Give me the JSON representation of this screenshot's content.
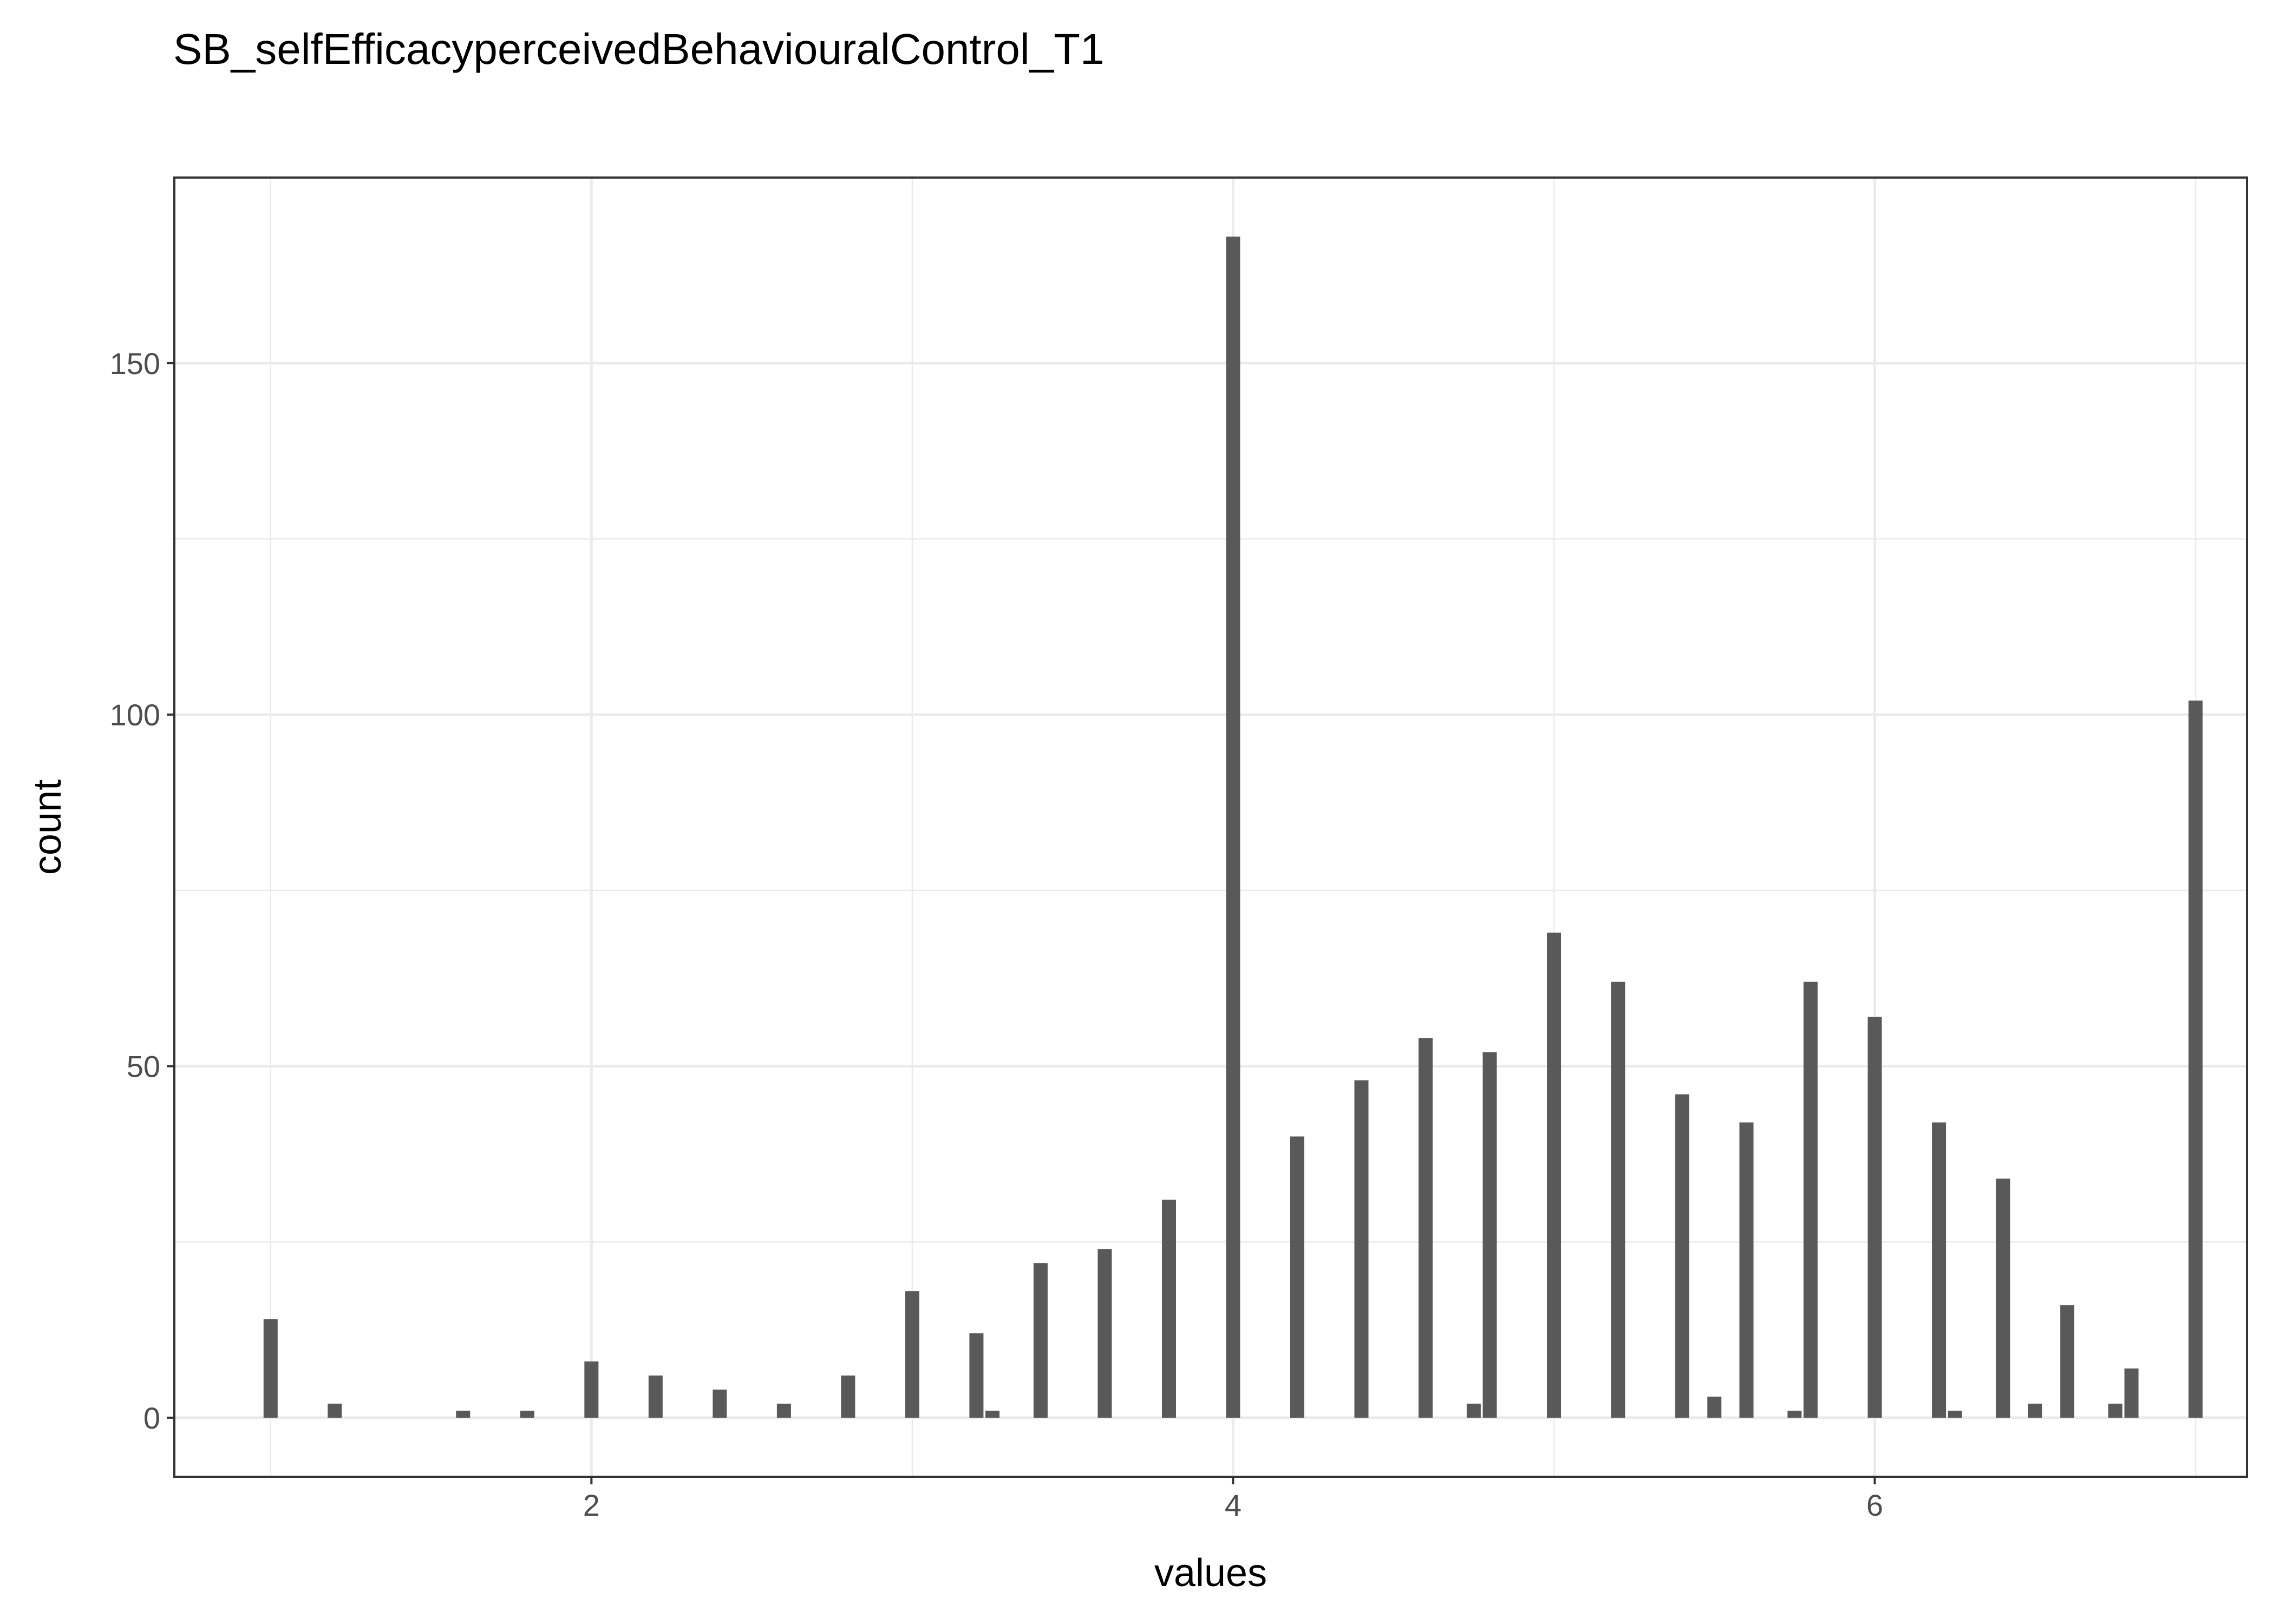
{
  "chart_data": {
    "type": "bar",
    "title": "SB_selfEfficacyperceivedBehaviouralControl_T1",
    "xlabel": "values",
    "ylabel": "count",
    "xlim": [
      0.7,
      7.16
    ],
    "ylim": [
      -8.4,
      176.4
    ],
    "x_ticks": [
      2,
      4,
      6
    ],
    "y_ticks": [
      0,
      50,
      100,
      150
    ],
    "x_minor_ticks": [
      1,
      3,
      5,
      7
    ],
    "y_minor_ticks": [
      25,
      75,
      125
    ],
    "grid": true,
    "bar_color": "#595959",
    "panel_border_color": "#333333",
    "grid_color": "#ebebeb",
    "bars": [
      {
        "x": 1.0,
        "count": 14
      },
      {
        "x": 1.2,
        "count": 2
      },
      {
        "x": 1.6,
        "count": 1
      },
      {
        "x": 1.8,
        "count": 1
      },
      {
        "x": 2.0,
        "count": 8
      },
      {
        "x": 2.2,
        "count": 6
      },
      {
        "x": 2.4,
        "count": 4
      },
      {
        "x": 2.6,
        "count": 2
      },
      {
        "x": 2.8,
        "count": 6
      },
      {
        "x": 3.0,
        "count": 18
      },
      {
        "x": 3.2,
        "count": 12
      },
      {
        "x": 3.25,
        "count": 1
      },
      {
        "x": 3.4,
        "count": 22
      },
      {
        "x": 3.6,
        "count": 24
      },
      {
        "x": 3.8,
        "count": 31
      },
      {
        "x": 4.0,
        "count": 168
      },
      {
        "x": 4.2,
        "count": 40
      },
      {
        "x": 4.4,
        "count": 48
      },
      {
        "x": 4.6,
        "count": 54
      },
      {
        "x": 4.75,
        "count": 2
      },
      {
        "x": 4.8,
        "count": 52
      },
      {
        "x": 5.0,
        "count": 69
      },
      {
        "x": 5.2,
        "count": 62
      },
      {
        "x": 5.4,
        "count": 46
      },
      {
        "x": 5.5,
        "count": 3
      },
      {
        "x": 5.6,
        "count": 42
      },
      {
        "x": 5.75,
        "count": 1
      },
      {
        "x": 5.8,
        "count": 62
      },
      {
        "x": 6.0,
        "count": 57
      },
      {
        "x": 6.2,
        "count": 42
      },
      {
        "x": 6.25,
        "count": 1
      },
      {
        "x": 6.4,
        "count": 34
      },
      {
        "x": 6.5,
        "count": 2
      },
      {
        "x": 6.6,
        "count": 16
      },
      {
        "x": 6.75,
        "count": 2
      },
      {
        "x": 6.8,
        "count": 7
      },
      {
        "x": 7.0,
        "count": 102
      }
    ]
  }
}
